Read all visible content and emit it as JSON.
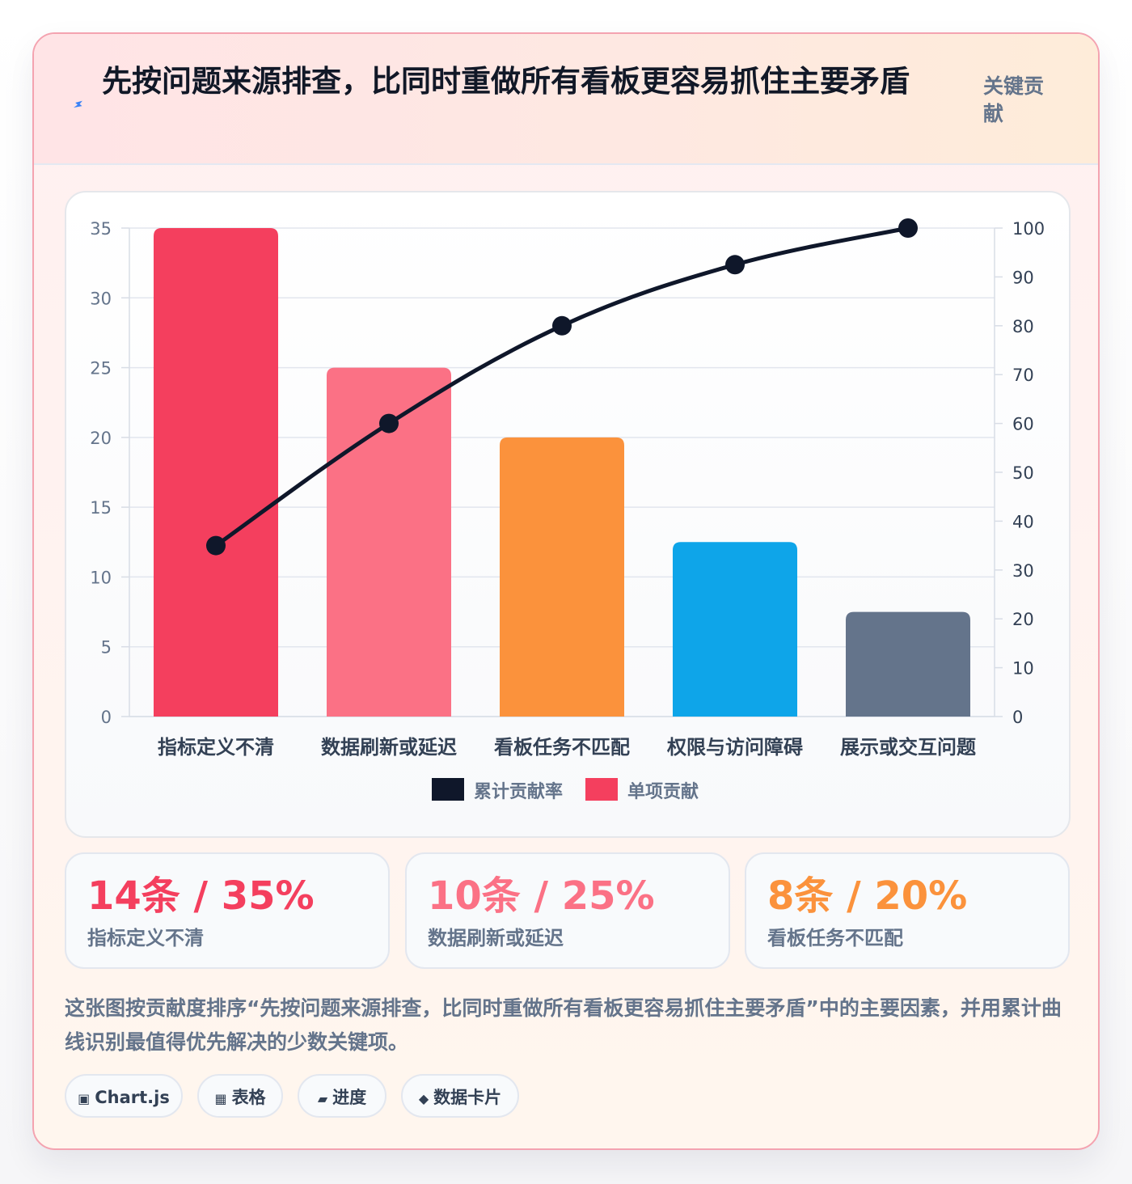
{
  "header": {
    "icon": "lightning-icon",
    "title": "先按问题来源排查，比同时重做所有看板更容易抓住主要矛盾",
    "tag": "关键贡献"
  },
  "chart_data": {
    "type": "bar",
    "categories": [
      "指标定义不清",
      "数据刷新或延迟",
      "看板任务不匹配",
      "权限与访问障碍",
      "展示或交互问题"
    ],
    "series": [
      {
        "name": "单项贡献",
        "type": "bar",
        "axis": "left",
        "values": [
          35,
          25,
          20,
          12.5,
          7.5
        ],
        "colors": [
          "#f43f5e",
          "#fb7185",
          "#fb923c",
          "#0ea5e9",
          "#64748b"
        ]
      },
      {
        "name": "累计贡献率",
        "type": "line",
        "axis": "right",
        "values": [
          35,
          60,
          80,
          92.5,
          100
        ],
        "color": "#0f172a"
      }
    ],
    "y_left": {
      "min": 0,
      "max": 35,
      "ticks": [
        0,
        5,
        10,
        15,
        20,
        25,
        30,
        35
      ]
    },
    "y_right": {
      "min": 0,
      "max": 100,
      "ticks": [
        0,
        10,
        20,
        30,
        40,
        50,
        60,
        70,
        80,
        90,
        100
      ]
    },
    "legend": [
      "累计贡献率",
      "单项贡献"
    ],
    "legend_position": "bottom",
    "grid": true
  },
  "stats": [
    {
      "value": "14条 / 35%",
      "label": "指标定义不清",
      "color": "#f43f5e"
    },
    {
      "value": "10条 / 25%",
      "label": "数据刷新或延迟",
      "color": "#fb7185"
    },
    {
      "value": "8条 / 20%",
      "label": "看板任务不匹配",
      "color": "#fb923c"
    }
  ],
  "description": "这张图按贡献度排序“先按问题来源排查，比同时重做所有看板更容易抓住主要矛盾”中的主要因素，并用累计曲线识别最值得优先解决的少数关键项。",
  "chips": [
    {
      "icon": "▣",
      "label": "Chart.js"
    },
    {
      "icon": "▦",
      "label": "表格"
    },
    {
      "icon": "▰",
      "label": "进度"
    },
    {
      "icon": "◆",
      "label": "数据卡片"
    }
  ]
}
